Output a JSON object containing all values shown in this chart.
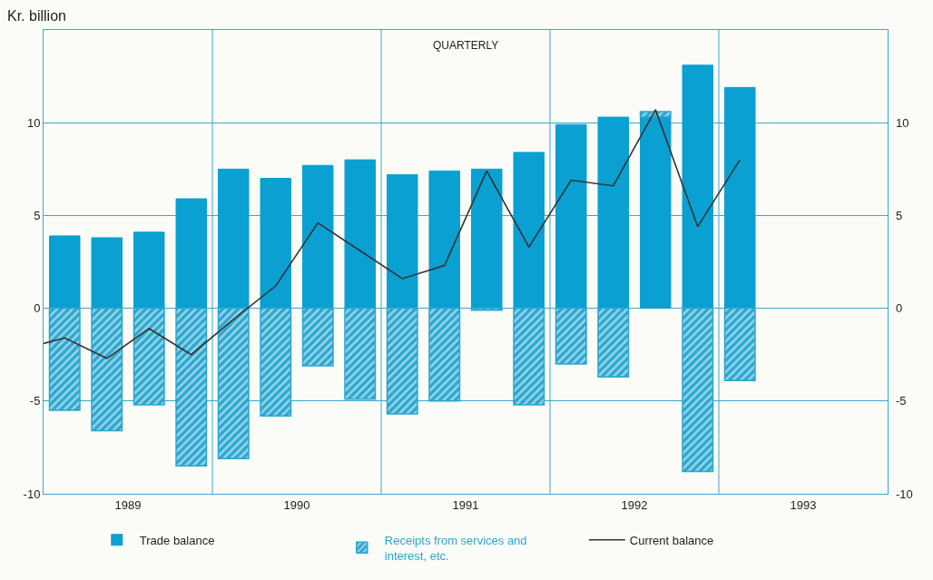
{
  "chart_data": {
    "type": "bar",
    "ylabel": "Kr. billion",
    "annotations": [
      "QUARTERLY"
    ],
    "x": [
      1989.125,
      1989.375,
      1989.625,
      1989.875,
      1990.125,
      1990.375,
      1990.625,
      1990.875,
      1991.125,
      1991.375,
      1991.625,
      1991.875,
      1992.125,
      1992.375,
      1992.625,
      1992.875,
      1993.125
    ],
    "stacked": true,
    "series": [
      {
        "name": "Trade balance",
        "color": "#0aa0d2",
        "values": [
          3.9,
          3.8,
          4.1,
          5.9,
          7.5,
          7.0,
          7.7,
          8.0,
          7.2,
          7.4,
          7.5,
          8.4,
          9.9,
          10.3,
          10.3,
          13.1,
          11.9
        ]
      },
      {
        "name": "Receipts from services and\ninterest, etc.",
        "color": "#2aa6cf",
        "values": [
          -5.5,
          -6.6,
          -5.2,
          -8.5,
          -8.1,
          -5.8,
          -3.1,
          -4.9,
          -5.7,
          -5.0,
          -0.1,
          -5.2,
          -3.0,
          -3.7,
          0.3,
          -8.8,
          -3.9
        ]
      },
      {
        "name": "Current balance",
        "type": "line",
        "color": "#333333",
        "x": [
          1989.0,
          1989.125,
          1989.375,
          1989.625,
          1989.875,
          1990.125,
          1990.375,
          1990.625,
          1990.875,
          1991.125,
          1991.375,
          1991.625,
          1991.875,
          1992.125,
          1992.375,
          1992.625,
          1992.875,
          1993.125
        ],
        "values": [
          -1.9,
          -1.6,
          -2.7,
          -1.1,
          -2.5,
          -0.6,
          1.2,
          4.6,
          3.1,
          1.6,
          2.3,
          7.4,
          3.3,
          6.9,
          6.6,
          10.7,
          4.4,
          8.0
        ]
      }
    ],
    "xlim": [
      1989,
      1994
    ],
    "xticks": [
      {
        "value": 1989.5,
        "label": "1989"
      },
      {
        "value": 1990.5,
        "label": "1990"
      },
      {
        "value": 1991.5,
        "label": "1991"
      },
      {
        "value": 1992.5,
        "label": "1992"
      },
      {
        "value": 1993.5,
        "label": "1993"
      }
    ],
    "ylim": [
      -10,
      15
    ],
    "yticks": [
      -10,
      -5,
      0,
      5,
      10
    ],
    "y2lim": [
      -10,
      15
    ],
    "y2ticks": [
      -10,
      -5,
      0,
      5,
      10
    ],
    "ref_lines": [
      {
        "axis": "x",
        "value": 1990,
        "label": null,
        "color": "#3aa8d0"
      },
      {
        "axis": "x",
        "value": 1991,
        "label": null,
        "color": "#3aa8d0"
      },
      {
        "axis": "x",
        "value": 1992,
        "label": null,
        "color": "#3aa8d0"
      },
      {
        "axis": "x",
        "value": 1993,
        "label": null,
        "color": "#3aa8d0"
      }
    ],
    "grid": "y",
    "legend": "bottom"
  }
}
